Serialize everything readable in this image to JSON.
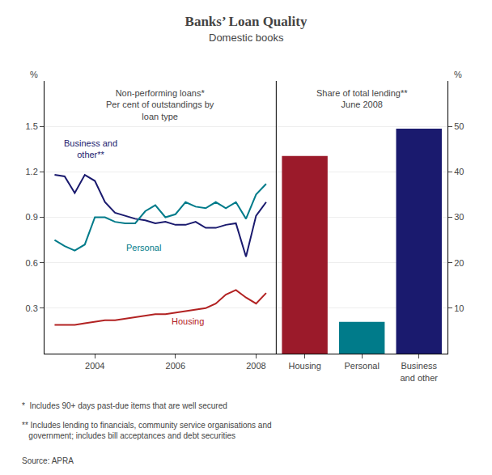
{
  "title": "Banks’ Loan Quality",
  "subtitle": "Domestic books",
  "footnotes": [
    "*  Includes 90+ days past-due items that are well secured",
    "** Includes lending to financials, community service organisations and\n   government; includes bill acceptances and debt securities",
    "Source: APRA"
  ],
  "chart_data": [
    {
      "type": "line",
      "title": "Non-performing loans*\nPer cent of outstandings by\nloan type",
      "y_label": "%",
      "x": [
        2003.0,
        2003.25,
        2003.5,
        2003.75,
        2004.0,
        2004.25,
        2004.5,
        2004.75,
        2005.0,
        2005.25,
        2005.5,
        2005.75,
        2006.0,
        2006.25,
        2006.5,
        2006.75,
        2007.0,
        2007.25,
        2007.5,
        2007.75,
        2008.0,
        2008.25
      ],
      "series": [
        {
          "color": "#1a1a6e",
          "values": [
            1.18,
            1.17,
            1.06,
            1.18,
            1.14,
            1.0,
            0.93,
            0.91,
            0.89,
            0.88,
            0.86,
            0.87,
            0.85,
            0.85,
            0.87,
            0.83,
            0.83,
            0.85,
            0.86,
            0.64,
            0.91,
            1.0
          ]
        },
        {
          "color": "#007b8a",
          "values": [
            0.75,
            0.71,
            0.68,
            0.72,
            0.9,
            0.9,
            0.87,
            0.86,
            0.86,
            0.94,
            0.98,
            0.9,
            0.92,
            1.0,
            0.97,
            0.96,
            1.0,
            0.96,
            1.0,
            0.89,
            1.05,
            1.12
          ]
        },
        {
          "color": "#b22222",
          "values": [
            0.19,
            0.19,
            0.19,
            0.2,
            0.21,
            0.22,
            0.22,
            0.23,
            0.24,
            0.25,
            0.26,
            0.26,
            0.27,
            0.28,
            0.29,
            0.3,
            0.33,
            0.39,
            0.42,
            0.37,
            0.33,
            0.4
          ]
        }
      ],
      "annotations": [
        {
          "text": "Business and\nother**",
          "x": 2003.9,
          "y": 1.35,
          "color": "#1a1a6e"
        },
        {
          "text": "Personal",
          "x": 2005.2,
          "y": 0.7,
          "color": "#007b8a"
        },
        {
          "text": "Housing",
          "x": 2006.3,
          "y": 0.215,
          "color": "#b22222"
        }
      ],
      "xlim": [
        2002.75,
        2008.5
      ],
      "xticks": [
        2004,
        2006,
        2008
      ],
      "ylim": [
        0,
        1.8
      ],
      "yticks": [
        0.3,
        0.6,
        0.9,
        1.2,
        1.5
      ],
      "grid": true
    },
    {
      "type": "bar",
      "title": "Share of total lending**\nJune 2008",
      "y_label": "%",
      "categories": [
        "Housing",
        "Personal",
        "Business\nand other"
      ],
      "values": [
        43.5,
        7.0,
        49.5
      ],
      "colors": [
        "#9b1a2a",
        "#007b8a",
        "#1a1a6e"
      ],
      "ylim": [
        0,
        60
      ],
      "yticks": [
        10,
        20,
        30,
        40,
        50
      ],
      "grid": true
    }
  ]
}
